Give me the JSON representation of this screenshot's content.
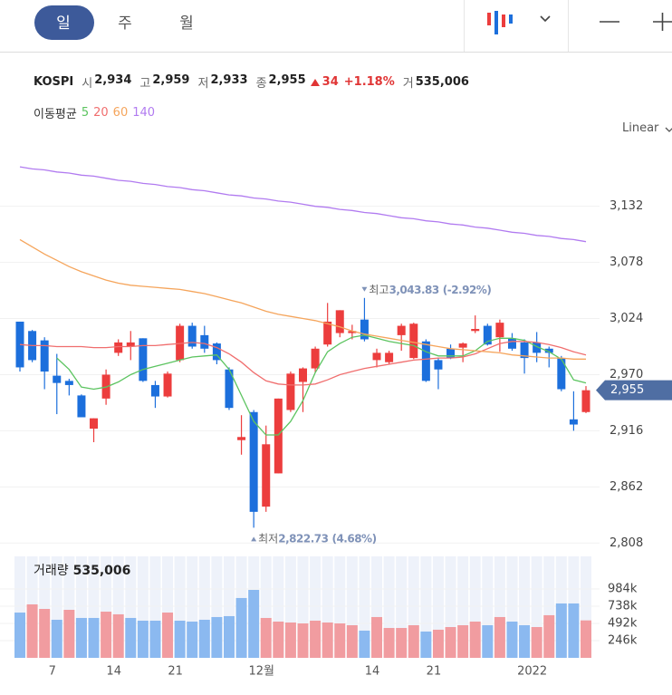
{
  "toolbar": {
    "tabs": [
      "일",
      "주",
      "월"
    ],
    "active_tab": 0
  },
  "quote": {
    "name": "KOSPI",
    "fields": [
      {
        "label": "시",
        "value": "2,934"
      },
      {
        "label": "고",
        "value": "2,959"
      },
      {
        "label": "저",
        "value": "2,933"
      },
      {
        "label": "종",
        "value": "2,955"
      }
    ],
    "change": "34",
    "change_rate": "+1.18%",
    "volume_label": "거",
    "volume": "535,006"
  },
  "ma_legend": {
    "title": "이동평균"
  },
  "scale_mode": "Linear",
  "chart_data": [
    {
      "type": "candlestick",
      "up_color": "#ec3d3d",
      "down_color": "#1c6fdc",
      "grid": true,
      "open": [
        3021,
        3012,
        3003,
        2969,
        2964,
        2950,
        2918,
        2947,
        2991,
        2997,
        3005,
        2960,
        2949,
        2984,
        3017,
        3008,
        3000,
        2975,
        2907,
        2934,
        2843,
        2875,
        2936,
        2963,
        2976,
        2999,
        3010,
        3010,
        3023,
        2984,
        2982,
        3008,
        2986,
        3002,
        2984,
        2995,
        2996,
        3012,
        3017,
        3006,
        3005,
        3001,
        3001,
        2995,
        2986,
        2927,
        2934
      ],
      "high": [
        3021,
        3013,
        3006,
        2990,
        2966,
        2951,
        2928,
        2975,
        3004,
        3012,
        3005,
        2964,
        2973,
        3019,
        3020,
        3017,
        3001,
        2977,
        2931,
        2936,
        2921,
        2947,
        2973,
        2977,
        2997,
        3039,
        3032,
        3018,
        3043.83,
        2995,
        2993,
        3019,
        3020,
        3004,
        2986,
        2999,
        3001,
        3027,
        3019,
        3023,
        3010,
        3004,
        3011,
        2997,
        2988,
        2954,
        2959
      ],
      "low": [
        2973,
        2982,
        2956,
        2932,
        2950,
        2929,
        2905,
        2941,
        2988,
        2984,
        2963,
        2938,
        2948,
        2982,
        2995,
        2991,
        2980,
        2936,
        2893,
        2822.73,
        2838,
        2875,
        2934,
        2934,
        2972,
        2997,
        3006,
        3004,
        3002,
        2977,
        2980,
        2993,
        2985,
        2963,
        2956,
        2985,
        2982,
        3010,
        2998,
        2992,
        2993,
        2971,
        2982,
        2977,
        2954,
        2916,
        2933
      ],
      "close": [
        2977,
        2984,
        2973,
        2962,
        2960,
        2929,
        2928,
        2970,
        3001,
        3001,
        2964,
        2949,
        2971,
        3017,
        2997,
        2995,
        2984,
        2938,
        2910,
        2838,
        2903,
        2947,
        2971,
        2976,
        2995,
        3021,
        3032,
        3012,
        3004,
        2991,
        2991,
        3017,
        3019,
        2964,
        2975,
        2986,
        3000,
        3014,
        2999,
        3020,
        2995,
        2986,
        2991,
        2991,
        2956,
        2922,
        2955
      ],
      "series": [
        {
          "name": "5",
          "color": "#5cc460",
          "values": [
            null,
            null,
            null,
            2986,
            2975,
            2958,
            2956,
            2958,
            2963,
            2970,
            2975,
            2978,
            2981,
            2984,
            2987,
            2988,
            2989,
            2975,
            2950,
            2925,
            2912,
            2912,
            2925,
            2945,
            2972,
            2992,
            3000,
            3006,
            3008,
            3005,
            3002,
            3000,
            2998,
            2992,
            2988,
            2988,
            2988,
            2993,
            3002,
            3005,
            3005,
            3003,
            2997,
            2992,
            2985,
            2965,
            2962
          ]
        },
        {
          "name": "20",
          "color": "#f06e6e",
          "values": [
            2999,
            2998,
            2998,
            2997,
            2997,
            2997,
            2996,
            2996,
            2997,
            2997,
            2998,
            2998,
            2999,
            3000,
            3001,
            3000,
            2996,
            2990,
            2982,
            2972,
            2964,
            2961,
            2960,
            2960,
            2961,
            2965,
            2970,
            2973,
            2976,
            2978,
            2980,
            2982,
            2984,
            2985,
            2986,
            2986,
            2987,
            2990,
            2995,
            3000,
            3002,
            3002,
            3001,
            2999,
            2996,
            2992,
            2989
          ]
        },
        {
          "name": "60",
          "color": "#f5a55c",
          "values": [
            3100,
            3093,
            3086,
            3080,
            3074,
            3069,
            3065,
            3061,
            3058,
            3056,
            3055,
            3054,
            3053,
            3052,
            3050,
            3048,
            3045,
            3042,
            3039,
            3035,
            3031,
            3028,
            3026,
            3024,
            3022,
            3019,
            3016,
            3012,
            3009,
            3007,
            3005,
            3003,
            3001,
            2999,
            2997,
            2995,
            2994,
            2993,
            2992,
            2991,
            2989,
            2988,
            2987,
            2986,
            2986,
            2985,
            2985
          ]
        },
        {
          "name": "140",
          "color": "#b17bf0",
          "values": [
            3170,
            3168,
            3167,
            3165,
            3164,
            3162,
            3161,
            3159,
            3157,
            3156,
            3154,
            3153,
            3151,
            3150,
            3148,
            3147,
            3145,
            3143,
            3142,
            3140,
            3139,
            3137,
            3136,
            3134,
            3132,
            3131,
            3129,
            3128,
            3126,
            3125,
            3123,
            3121,
            3120,
            3118,
            3117,
            3115,
            3114,
            3112,
            3111,
            3109,
            3107,
            3106,
            3104,
            3103,
            3101,
            3100,
            3098
          ]
        }
      ],
      "ylim": [
        2803,
        3191
      ],
      "yticks": [
        {
          "value": 3132,
          "label": "3,132"
        },
        {
          "value": 3078,
          "label": "3,078"
        },
        {
          "value": 3024,
          "label": "3,024"
        },
        {
          "value": 2970,
          "label": "2,970"
        },
        {
          "value": 2916,
          "label": "2,916"
        },
        {
          "value": 2862,
          "label": "2,862"
        },
        {
          "value": 2808,
          "label": "2,808"
        }
      ],
      "last_price": {
        "value": 2955,
        "label": "2,955"
      },
      "annotations": [
        {
          "text": "최고",
          "value": 3043.83,
          "value_label": "3,043.83",
          "change": "(-2.92%)"
        },
        {
          "text": "최저",
          "value": 2822.73,
          "value_label": "2,822.73",
          "change": "(4.68%)"
        }
      ]
    },
    {
      "type": "bar",
      "title": "거래량",
      "categories": [
        null,
        null,
        null,
        "7",
        null,
        null,
        null,
        null,
        "14",
        null,
        null,
        null,
        null,
        "21",
        null,
        null,
        null,
        null,
        null,
        null,
        "12월",
        null,
        null,
        null,
        null,
        null,
        null,
        null,
        null,
        "14",
        null,
        null,
        null,
        null,
        "21",
        null,
        null,
        null,
        null,
        null,
        null,
        null,
        "2022",
        null,
        null,
        null,
        null
      ],
      "values": [
        647000,
        764000,
        699000,
        544000,
        686000,
        570000,
        570000,
        660000,
        622000,
        570000,
        531000,
        531000,
        647000,
        531000,
        518000,
        544000,
        583000,
        596000,
        855000,
        971000,
        570000,
        518000,
        505000,
        492000,
        531000,
        505000,
        492000,
        466000,
        389000,
        583000,
        427000,
        427000,
        466000,
        376000,
        402000,
        440000,
        466000,
        518000,
        466000,
        583000,
        518000,
        466000,
        440000,
        609000,
        777000,
        777000,
        535006
      ],
      "colors": [
        "#8bb9f0",
        "#f19ca0",
        "#f19ca0",
        "#8bb9f0",
        "#f19ca0",
        "#8bb9f0",
        "#8bb9f0",
        "#f19ca0",
        "#f19ca0",
        "#8bb9f0",
        "#8bb9f0",
        "#8bb9f0",
        "#f19ca0",
        "#8bb9f0",
        "#8bb9f0",
        "#8bb9f0",
        "#8bb9f0",
        "#8bb9f0",
        "#8bb9f0",
        "#8bb9f0",
        "#f19ca0",
        "#f19ca0",
        "#f19ca0",
        "#f19ca0",
        "#f19ca0",
        "#f19ca0",
        "#f19ca0",
        "#f19ca0",
        "#8bb9f0",
        "#f19ca0",
        "#f19ca0",
        "#f19ca0",
        "#f19ca0",
        "#8bb9f0",
        "#f19ca0",
        "#f19ca0",
        "#f19ca0",
        "#f19ca0",
        "#8bb9f0",
        "#f19ca0",
        "#8bb9f0",
        "#8bb9f0",
        "#f19ca0",
        "#f19ca0",
        "#8bb9f0",
        "#8bb9f0",
        "#f19ca0"
      ],
      "ylim": [
        0,
        1450000
      ],
      "yticks": [
        {
          "value": 984000,
          "label": "984k"
        },
        {
          "value": 738000,
          "label": "738k"
        },
        {
          "value": 492000,
          "label": "492k"
        },
        {
          "value": 246000,
          "label": "246k"
        }
      ]
    }
  ]
}
